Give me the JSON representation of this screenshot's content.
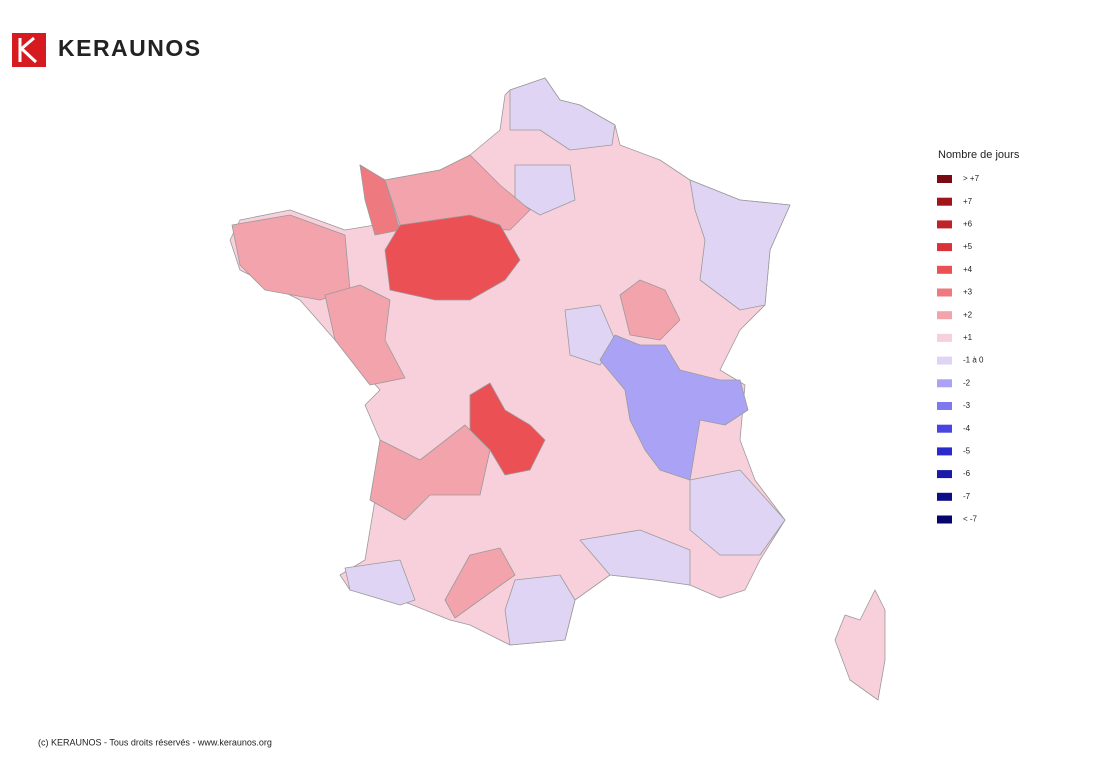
{
  "header": {
    "brand": "KERAUNOS"
  },
  "legend": {
    "title": "Nombre de jours",
    "items": [
      {
        "label": "> +7",
        "color": "#7a0a14"
      },
      {
        "label": "+7",
        "color": "#a01519"
      },
      {
        "label": "+6",
        "color": "#c0222a"
      },
      {
        "label": "+5",
        "color": "#d93239"
      },
      {
        "label": "+4",
        "color": "#ea5054"
      },
      {
        "label": "+3",
        "color": "#ee7a80"
      },
      {
        "label": "+2",
        "color": "#f3a3ab"
      },
      {
        "label": "+1",
        "color": "#f8d0dc"
      },
      {
        "label": "-1 à 0",
        "color": "#e0d4f5"
      },
      {
        "label": "-2",
        "color": "#aaa3f5"
      },
      {
        "label": "-3",
        "color": "#7f78ee"
      },
      {
        "label": "-4",
        "color": "#4a44e0"
      },
      {
        "label": "-5",
        "color": "#2a2acc"
      },
      {
        "label": "-6",
        "color": "#1a1aa8"
      },
      {
        "label": "-7",
        "color": "#0d0d88"
      },
      {
        "label": "< -7",
        "color": "#06066a"
      }
    ]
  },
  "footer": {
    "text": "(c) KERAUNOS - Tous droits réservés - www.keraunos.org"
  }
}
